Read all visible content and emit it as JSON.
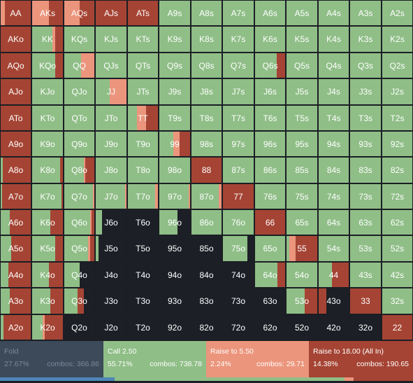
{
  "colors": {
    "fold": "#1c1f26",
    "call": "#8fbe87",
    "raise_small": "#eb957c",
    "raise_allin": "#a54434"
  },
  "ranks": [
    "A",
    "K",
    "Q",
    "J",
    "T",
    "9",
    "8",
    "7",
    "6",
    "5",
    "4",
    "3",
    "2"
  ],
  "hands": [
    [
      "AA",
      "AKs",
      "AQs",
      "AJs",
      "ATs",
      "A9s",
      "A8s",
      "A7s",
      "A6s",
      "A5s",
      "A4s",
      "A3s",
      "A2s"
    ],
    [
      "AKo",
      "KK",
      "KQs",
      "KJs",
      "KTs",
      "K9s",
      "K8s",
      "K7s",
      "K6s",
      "K5s",
      "K4s",
      "K3s",
      "K2s"
    ],
    [
      "AQo",
      "KQo",
      "QQ",
      "QJs",
      "QTs",
      "Q9s",
      "Q8s",
      "Q7s",
      "Q6s",
      "Q5s",
      "Q4s",
      "Q3s",
      "Q2s"
    ],
    [
      "AJo",
      "KJo",
      "QJo",
      "JJ",
      "JTs",
      "J9s",
      "J8s",
      "J7s",
      "J6s",
      "J5s",
      "J4s",
      "J3s",
      "J2s"
    ],
    [
      "ATo",
      "KTo",
      "QTo",
      "JTo",
      "TT",
      "T9s",
      "T8s",
      "T7s",
      "T6s",
      "T5s",
      "T4s",
      "T3s",
      "T2s"
    ],
    [
      "A9o",
      "K9o",
      "Q9o",
      "J9o",
      "T9o",
      "99",
      "98s",
      "97s",
      "96s",
      "95s",
      "94s",
      "93s",
      "92s"
    ],
    [
      "A8o",
      "K8o",
      "Q8o",
      "J8o",
      "T8o",
      "98o",
      "88",
      "87s",
      "86s",
      "85s",
      "84s",
      "83s",
      "82s"
    ],
    [
      "A7o",
      "K7o",
      "Q7o",
      "J7o",
      "T7o",
      "97o",
      "87o",
      "77",
      "76s",
      "75s",
      "74s",
      "73s",
      "72s"
    ],
    [
      "A6o",
      "K6o",
      "Q6o",
      "J6o",
      "T6o",
      "96o",
      "86o",
      "76o",
      "66",
      "65s",
      "64s",
      "63s",
      "62s"
    ],
    [
      "A5o",
      "K5o",
      "Q5o",
      "J5o",
      "T5o",
      "95o",
      "85o",
      "75o",
      "65o",
      "55",
      "54s",
      "53s",
      "52s"
    ],
    [
      "A4o",
      "K4o",
      "Q4o",
      "J4o",
      "T4o",
      "94o",
      "84o",
      "74o",
      "64o",
      "54o",
      "44",
      "43s",
      "42s"
    ],
    [
      "A3o",
      "K3o",
      "Q3o",
      "J3o",
      "T3o",
      "93o",
      "83o",
      "73o",
      "63o",
      "53o",
      "43o",
      "33",
      "32s"
    ],
    [
      "A2o",
      "K2o",
      "Q2o",
      "J2o",
      "T2o",
      "92o",
      "82o",
      "72o",
      "62o",
      "52o",
      "42o",
      "32o",
      "22"
    ]
  ],
  "strategy": {
    "AA": [
      0,
      0,
      0.15,
      0.85
    ],
    "AKs": [
      0,
      0,
      0.55,
      0.45
    ],
    "AQs": [
      0,
      0,
      0.5,
      0.5
    ],
    "AJs": [
      0,
      0,
      0,
      1
    ],
    "ATs": [
      0,
      0,
      0,
      1
    ],
    "AKo": [
      0,
      0,
      0,
      1
    ],
    "KK": [
      0,
      0.65,
      0.1,
      0.25
    ],
    "QQ": [
      0,
      0.55,
      0.45,
      0
    ],
    "JJ": [
      0,
      0.45,
      0.55,
      0
    ],
    "TT": [
      0,
      0.3,
      0.3,
      0.4
    ],
    "KQo": [
      0,
      0.75,
      0,
      0.25
    ],
    "Q6s": [
      0,
      0.72,
      0,
      0.28
    ],
    "99": [
      0,
      0.45,
      0.2,
      0.35
    ],
    "88": [
      0,
      0,
      0,
      1
    ],
    "77": [
      0,
      0,
      0,
      1
    ],
    "66": [
      0,
      0,
      0,
      1
    ],
    "55": [
      0,
      0.1,
      0.2,
      0.7
    ],
    "44": [
      0,
      0.45,
      0,
      0.55
    ],
    "33": [
      0,
      0,
      0,
      1
    ],
    "22": [
      0,
      0,
      0,
      1
    ],
    "AQo": [
      0,
      0,
      0,
      1
    ],
    "AJo": [
      0,
      0,
      0,
      1
    ],
    "ATo": [
      0,
      0,
      0,
      1
    ],
    "A9o": [
      0,
      0,
      0,
      1
    ],
    "A8o": [
      0,
      0.08,
      0,
      0.92
    ],
    "A7o": [
      0,
      0.05,
      0,
      0.95
    ],
    "A6o": [
      0,
      0.3,
      0,
      0.7
    ],
    "A5o": [
      0,
      0.35,
      0,
      0.65
    ],
    "A4o": [
      0,
      0.25,
      0,
      0.75
    ],
    "A3o": [
      0,
      0.3,
      0,
      0.7
    ],
    "A2o": [
      0,
      0.1,
      0,
      0.9
    ],
    "K8o": [
      0,
      0.92,
      0,
      0.08
    ],
    "K7o": [
      0,
      0.95,
      0,
      0.05
    ],
    "K6o": [
      0,
      0.6,
      0,
      0.4
    ],
    "K5o": [
      0,
      0.75,
      0,
      0.25
    ],
    "K4o": [
      0,
      0.55,
      0,
      0.45
    ],
    "K3o": [
      0,
      0.6,
      0,
      0.4
    ],
    "K2o": [
      0,
      0.35,
      0.05,
      0.6
    ],
    "Q8o": [
      0,
      0.65,
      0.05,
      0.3
    ],
    "Q7o": [
      0,
      0.95,
      0.05,
      0
    ],
    "Q6o": [
      0,
      0.85,
      0.05,
      0.1
    ],
    "Q5o": [
      0,
      0.8,
      0.05,
      0.15
    ],
    "Q4o": [
      0.5,
      0.5,
      0,
      0
    ],
    "Q3o": [
      0.35,
      0.45,
      0,
      0.2
    ],
    "Q2o": [
      1,
      0,
      0,
      0
    ],
    "J7o": [
      0,
      0.95,
      0.05,
      0
    ],
    "J6o": [
      0.8,
      0.2,
      0,
      0
    ],
    "J5o": [
      0.9,
      0.1,
      0,
      0
    ],
    "J4o": [
      1,
      0,
      0,
      0
    ],
    "J3o": [
      1,
      0,
      0,
      0
    ],
    "J2o": [
      1,
      0,
      0,
      0
    ],
    "T7o": [
      0,
      0.9,
      0.1,
      0
    ],
    "T6o": [
      1,
      0,
      0,
      0
    ],
    "T5o": [
      1,
      0,
      0,
      0
    ],
    "T4o": [
      1,
      0,
      0,
      0
    ],
    "T3o": [
      1,
      0,
      0,
      0
    ],
    "T2o": [
      1,
      0,
      0,
      0
    ],
    "97o": [
      0,
      0.95,
      0.05,
      0
    ],
    "96o": [
      0.4,
      0.6,
      0,
      0
    ],
    "95o": [
      1,
      0,
      0,
      0
    ],
    "94o": [
      1,
      0,
      0,
      0
    ],
    "93o": [
      1,
      0,
      0,
      0
    ],
    "92o": [
      1,
      0,
      0,
      0
    ],
    "87o": [
      0,
      0.9,
      0.1,
      0
    ],
    "86o": [
      0,
      1,
      0,
      0
    ],
    "85o": [
      1,
      0,
      0,
      0
    ],
    "84o": [
      1,
      0,
      0,
      0
    ],
    "83o": [
      1,
      0,
      0,
      0
    ],
    "82o": [
      1,
      0,
      0,
      0
    ],
    "76o": [
      0,
      1,
      0,
      0
    ],
    "75o": [
      0.2,
      0.8,
      0,
      0
    ],
    "74o": [
      1,
      0,
      0,
      0
    ],
    "73o": [
      1,
      0,
      0,
      0
    ],
    "72o": [
      1,
      0,
      0,
      0
    ],
    "65o": [
      0,
      1,
      0,
      0
    ],
    "64o": [
      0,
      0.75,
      0,
      0.25
    ],
    "63o": [
      1,
      0,
      0,
      0
    ],
    "62o": [
      1,
      0,
      0,
      0
    ],
    "54o": [
      0,
      1,
      0,
      0
    ],
    "53o": [
      0,
      0.6,
      0,
      0.4
    ],
    "52o": [
      1,
      0,
      0,
      0
    ],
    "43o": [
      0.75,
      0,
      0,
      0.25
    ],
    "42o": [
      1,
      0,
      0,
      0
    ],
    "32o": [
      1,
      0,
      0,
      0
    ]
  },
  "default_strategy": [
    0,
    1,
    0,
    0
  ],
  "legend": {
    "fold": {
      "label": "Fold",
      "pct": "27.67%",
      "combos": "combos: 366.86"
    },
    "call": {
      "label": "Call 2.50",
      "pct": "55.71%",
      "combos": "combos: 738.78"
    },
    "raise_small": {
      "label": "Raise to 5.50",
      "pct": "2.24%",
      "combos": "combos: 29.71"
    },
    "raise_allin": {
      "label": "Raise to 18.00 (All In)",
      "pct": "14.38%",
      "combos": "combos: 190.65"
    }
  },
  "summary_bar": [
    0.2767,
    0.5571,
    0.0224,
    0.1438
  ],
  "summary_bar_colors": [
    "#4e86b8",
    "#8fbe87",
    "#eb957c",
    "#a54434"
  ]
}
